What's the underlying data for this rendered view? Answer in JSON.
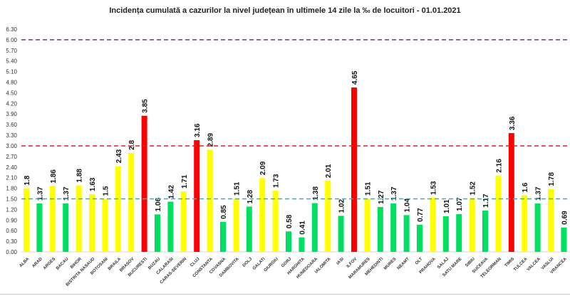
{
  "chart_data": {
    "type": "bar",
    "title": "Incidența cumulată a cazurilor la nivel județean în ultimele 14 zile la ‰ de locuitori - 01.01.2021",
    "xlabel": "",
    "ylabel": "",
    "ylim": [
      0,
      6.3
    ],
    "yticks": [
      "0.00",
      "0.30",
      "0.60",
      "0.90",
      "1.20",
      "1.50",
      "1.80",
      "2.10",
      "2.40",
      "2.70",
      "3.00",
      "3.30",
      "3.60",
      "3.90",
      "4.20",
      "4.50",
      "4.80",
      "5.10",
      "5.40",
      "5.70",
      "6.00",
      "6.30"
    ],
    "categories": [
      "ALBA",
      "ARAD",
      "ARGES",
      "BACAU",
      "BIHOR",
      "BISTRITA NASAUD",
      "BOTOSANI",
      "BRAILA",
      "BRASOV",
      "BUCURESTI",
      "BUZAU",
      "CALARASI",
      "CARAS-SEVERIN",
      "CLUJ",
      "CONSTANTA",
      "COVASNA",
      "DAMBOVITA",
      "DOLJ",
      "GALATI",
      "GIURGIU",
      "GORJ",
      "HARGHITA",
      "HUNEDOARA",
      "IALOMITA",
      "IASI",
      "ILFOV",
      "MARAMURES",
      "MEHEDINTI",
      "MURES",
      "NEAMT",
      "OLT",
      "PRAHOVA",
      "SALAJ",
      "SATU MARE",
      "SIBIU",
      "SUCEAVA",
      "TELEORMAN",
      "TIMIS",
      "TULCEA",
      "VALCEA",
      "VASLUI",
      "VRANCEA"
    ],
    "values": [
      1.8,
      1.37,
      1.86,
      1.37,
      1.88,
      1.63,
      1.5,
      2.43,
      2.8,
      3.85,
      1.06,
      1.42,
      1.71,
      3.16,
      2.89,
      0.85,
      1.51,
      1.28,
      2.09,
      1.73,
      0.58,
      0.41,
      1.38,
      2.01,
      1.02,
      4.65,
      1.51,
      1.27,
      1.37,
      1.04,
      0.77,
      1.53,
      1.01,
      1.07,
      1.52,
      1.17,
      2.16,
      3.36,
      1.6,
      1.37,
      1.78,
      0.69
    ],
    "thresholds": [
      {
        "value": 6.0,
        "color": "#7030a0"
      },
      {
        "value": 3.0,
        "color": "#e02020"
      },
      {
        "value": 1.5,
        "color": "#1fb8d0"
      }
    ],
    "colors": {
      "green": "#00e060",
      "yellow": "#ffff00",
      "red": "#ff0000"
    },
    "grid": false,
    "legend": "none"
  }
}
